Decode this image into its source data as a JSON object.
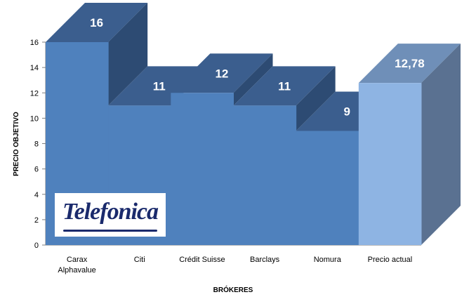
{
  "chart_data": {
    "type": "bar",
    "style": "3d-stepped",
    "categories": [
      [
        "Carax",
        "Alphavalue"
      ],
      [
        "Citi"
      ],
      [
        "Crédit Suisse"
      ],
      [
        "Barclays"
      ],
      [
        "Nomura"
      ],
      [
        "Precio actual"
      ]
    ],
    "values": [
      16,
      11,
      12,
      11,
      9,
      12.78
    ],
    "data_labels": [
      "16",
      "11",
      "12",
      "11",
      "9",
      "12,78"
    ],
    "xlabel": "BRÓKERES",
    "ylabel": "PRECIO OBJETIVO",
    "ylim": [
      0,
      16
    ],
    "yticks": [
      0,
      2,
      4,
      6,
      8,
      10,
      12,
      14,
      16
    ],
    "grid": false,
    "legend": "none",
    "colors": {
      "front": "#4f81bd",
      "top": "#3b5e8e",
      "side": "#2d4b73",
      "highlight_front": "#8eb4e3",
      "highlight_top": "#6f8fb8",
      "highlight_side": "#5a7191"
    },
    "highlight_index": 5
  },
  "logo": {
    "name": "telefonica-logo",
    "text": "Telefonica"
  }
}
